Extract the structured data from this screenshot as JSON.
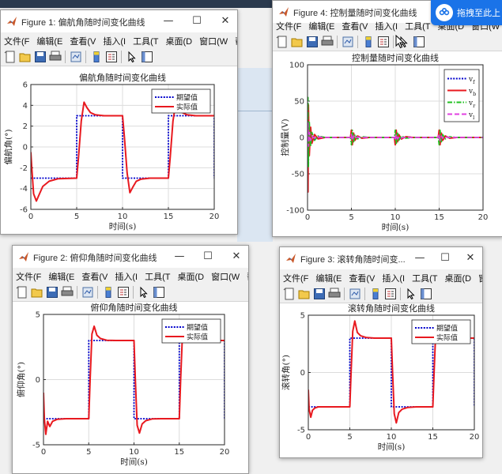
{
  "menu": [
    "文件(F",
    "编辑(E",
    "查看(V",
    "插入(I",
    "工具(T",
    "桌面(D",
    "窗口(W",
    "帮助(H"
  ],
  "win_buttons": {
    "minimize": "—",
    "maximize": "☐",
    "close": "✕"
  },
  "badge": {
    "label": "拖拽至此上"
  },
  "figures": [
    {
      "id": "fig1",
      "window_title": "Figure 1: 偏航角随时间变化曲线",
      "chart_data": {
        "type": "line",
        "title": "偏航角随时间变化曲线",
        "xlabel": "时间(s)",
        "ylabel": "偏航角(°)",
        "xlim": [
          0,
          20
        ],
        "ylim": [
          -6,
          6
        ],
        "xticks": [
          0,
          5,
          10,
          15,
          20
        ],
        "xtick_labels": [
          "0",
          "5",
          "10",
          "15",
          "20"
        ],
        "yticks": [
          -6,
          -4,
          -2,
          0,
          2,
          4,
          6
        ],
        "ytick_labels": [
          "-6",
          "-4",
          "-2",
          "0",
          "2",
          "4",
          "6"
        ],
        "grid": true,
        "legend_position": "top-right",
        "series": [
          {
            "name": "期望值",
            "color": "#0000cc",
            "style": "dotted",
            "x": [
              0,
              5,
              5,
              10,
              10,
              15,
              15,
              20,
              20
            ],
            "y": [
              -3,
              -3,
              3,
              3,
              -3,
              -3,
              3,
              3,
              -3
            ]
          },
          {
            "name": "实际值",
            "color": "#e8191f",
            "style": "solid",
            "x": [
              0,
              0.1,
              0.3,
              0.6,
              0.9,
              1.3,
              2.0,
              3.0,
              5.0,
              5.2,
              5.5,
              5.8,
              6.1,
              6.5,
              7.0,
              8.0,
              10.0,
              10.2,
              10.5,
              10.8,
              11.1,
              11.5,
              12.0,
              13.0,
              15.0,
              15.2,
              15.5,
              15.8,
              16.1,
              16.5,
              17.0,
              18.0,
              20.0
            ],
            "y": [
              -0.5,
              -2.0,
              -4.5,
              -5.2,
              -4.6,
              -3.8,
              -3.3,
              -3.05,
              -3.0,
              -1.0,
              2.5,
              4.3,
              3.8,
              3.3,
              3.1,
              3.0,
              3.0,
              1.0,
              -2.5,
              -4.4,
              -3.9,
              -3.3,
              -3.1,
              -3.0,
              -3.0,
              -1.0,
              2.5,
              4.2,
              3.7,
              3.3,
              3.1,
              3.0,
              3.0
            ]
          }
        ]
      }
    },
    {
      "id": "fig4",
      "window_title": "Figure 4: 控制量随时间变化曲线",
      "chart_data": {
        "type": "line",
        "title": "控制量随时间变化曲线",
        "xlabel": "时间(s)",
        "ylabel": "控制量(V)",
        "xlim": [
          0,
          20
        ],
        "ylim": [
          -100,
          100
        ],
        "xticks": [
          0,
          5,
          10,
          15,
          20
        ],
        "xtick_labels": [
          "0",
          "5",
          "10",
          "15",
          "20"
        ],
        "yticks": [
          -100,
          -50,
          0,
          50,
          100
        ],
        "ytick_labels": [
          "-100",
          "-50",
          "0",
          "50",
          "100"
        ],
        "grid": true,
        "legend_position": "top-right",
        "series": [
          {
            "name": "v",
            "sub": "f",
            "color": "#0000cc",
            "style": "dotted",
            "x": [
              0,
              0.05,
              0.1,
              0.2,
              0.35,
              0.5,
              0.8,
              1.2,
              2.0,
              4.9,
              5.0,
              5.1,
              5.25,
              5.4,
              5.7,
              6.2,
              7.0,
              9.9,
              10.0,
              10.1,
              10.25,
              10.4,
              10.7,
              11.2,
              12.0,
              14.9,
              15.0,
              15.1,
              15.25,
              15.4,
              15.7,
              16.2,
              17.0,
              20.0
            ],
            "y": [
              0,
              30,
              -20,
              12,
              -8,
              5,
              -3,
              1,
              0,
              0,
              8,
              -8,
              5,
              -3,
              2,
              -1,
              0,
              0,
              -8,
              8,
              -5,
              3,
              -2,
              1,
              0,
              0,
              8,
              -8,
              5,
              -3,
              2,
              -1,
              0,
              0
            ]
          },
          {
            "name": "v",
            "sub": "b",
            "color": "#e8191f",
            "style": "solid",
            "x": [
              0,
              0.05,
              0.1,
              0.2,
              0.35,
              0.5,
              0.8,
              1.2,
              2.0,
              4.9,
              5.0,
              5.1,
              5.25,
              5.4,
              5.7,
              6.2,
              7.0,
              9.9,
              10.0,
              10.1,
              10.25,
              10.4,
              10.7,
              11.2,
              12.0,
              14.9,
              15.0,
              15.1,
              15.25,
              15.4,
              15.7,
              16.2,
              17.0,
              20.0
            ],
            "y": [
              0,
              -75,
              45,
              -25,
              14,
              -8,
              4,
              -2,
              0,
              0,
              10,
              -10,
              6,
              -4,
              2,
              -1,
              0,
              0,
              -10,
              10,
              -6,
              4,
              -2,
              1,
              0,
              0,
              10,
              -10,
              6,
              -4,
              2,
              -1,
              0,
              0
            ]
          },
          {
            "name": "v",
            "sub": "r",
            "color": "#22c022",
            "style": "dashdot",
            "x": [
              0,
              0.05,
              0.1,
              0.2,
              0.35,
              0.5,
              0.8,
              1.2,
              2.0,
              4.9,
              5.0,
              5.1,
              5.25,
              5.4,
              5.7,
              6.2,
              7.0,
              9.9,
              10.0,
              10.1,
              10.25,
              10.4,
              10.7,
              11.2,
              12.0,
              14.9,
              15.0,
              15.1,
              15.25,
              15.4,
              15.7,
              16.2,
              17.0,
              20.0
            ],
            "y": [
              0,
              55,
              -40,
              22,
              -12,
              7,
              -4,
              2,
              0,
              0,
              -10,
              10,
              -6,
              4,
              -2,
              1,
              0,
              0,
              10,
              -10,
              6,
              -4,
              2,
              -1,
              0,
              0,
              -10,
              10,
              -6,
              4,
              -2,
              1,
              0,
              0
            ]
          },
          {
            "name": "v",
            "sub": "l",
            "color": "#e040e0",
            "style": "dashed",
            "x": [
              0,
              0.05,
              0.1,
              0.2,
              0.35,
              0.5,
              0.8,
              1.2,
              2.0,
              4.9,
              5.0,
              5.1,
              5.25,
              5.4,
              5.7,
              6.2,
              7.0,
              9.9,
              10.0,
              10.1,
              10.25,
              10.4,
              10.7,
              11.2,
              12.0,
              14.9,
              15.0,
              15.1,
              15.25,
              15.4,
              15.7,
              16.2,
              17.0,
              20.0
            ],
            "y": [
              0,
              20,
              -12,
              7,
              -4,
              2,
              -1,
              0.5,
              0,
              0,
              4,
              -4,
              2,
              -1,
              0.5,
              0,
              0,
              0,
              -4,
              4,
              -2,
              1,
              -0.5,
              0,
              0,
              0,
              4,
              -4,
              2,
              -1,
              0.5,
              0,
              0,
              0
            ]
          }
        ]
      }
    },
    {
      "id": "fig2",
      "window_title": "Figure 2: 俯仰角随时间变化曲线",
      "chart_data": {
        "type": "line",
        "title": "俯仰角随时间变化曲线",
        "xlabel": "时间(s)",
        "ylabel": "俯仰角(°)",
        "xlim": [
          0,
          20
        ],
        "ylim": [
          -5,
          5
        ],
        "xticks": [
          0,
          5,
          10,
          15,
          20
        ],
        "xtick_labels": [
          "0",
          "5",
          "10",
          "15",
          "20"
        ],
        "yticks": [
          -5,
          0,
          5
        ],
        "ytick_labels": [
          "-5",
          "0",
          "5"
        ],
        "grid": true,
        "legend_position": "top-right",
        "series": [
          {
            "name": "期望值",
            "color": "#0000cc",
            "style": "dotted",
            "x": [
              0,
              5,
              5,
              10,
              10,
              15,
              15,
              20,
              20
            ],
            "y": [
              -3,
              -3,
              3,
              3,
              -3,
              -3,
              3,
              3,
              -3
            ]
          },
          {
            "name": "实际值",
            "color": "#e8191f",
            "style": "solid",
            "x": [
              0,
              0.1,
              0.25,
              0.45,
              0.7,
              1.0,
              1.5,
              2.5,
              5.0,
              5.15,
              5.35,
              5.6,
              5.9,
              6.3,
              7.0,
              8.0,
              10.0,
              10.15,
              10.35,
              10.6,
              10.9,
              11.3,
              12.0,
              13.0,
              15.0,
              15.15,
              15.35,
              15.6,
              15.9,
              16.3,
              17.0,
              18.0,
              20.0
            ],
            "y": [
              -1.0,
              -3.0,
              -4.2,
              -3.2,
              -3.6,
              -3.2,
              -3.05,
              -3.0,
              -3.0,
              0.0,
              3.5,
              4.1,
              3.4,
              3.15,
              3.02,
              3.0,
              3.0,
              0.0,
              -3.5,
              -4.1,
              -3.4,
              -3.15,
              -3.02,
              -3.0,
              -3.0,
              0.0,
              3.5,
              4.1,
              3.4,
              3.15,
              3.02,
              3.0,
              3.0
            ]
          }
        ]
      }
    },
    {
      "id": "fig3",
      "window_title": "Figure 3: 滚转角随时间变...",
      "chart_data": {
        "type": "line",
        "title": "滚转角随时间变化曲线",
        "xlabel": "时间(s)",
        "ylabel": "滚转角(°)",
        "xlim": [
          0,
          20
        ],
        "ylim": [
          -5,
          5
        ],
        "xticks": [
          0,
          5,
          10,
          15,
          20
        ],
        "xtick_labels": [
          "0",
          "5",
          "10",
          "15",
          "20"
        ],
        "yticks": [
          -5,
          0,
          5
        ],
        "ytick_labels": [
          "-5",
          "0",
          "5"
        ],
        "grid": true,
        "legend_position": "top-right",
        "series": [
          {
            "name": "期望值",
            "color": "#0000cc",
            "style": "dotted",
            "x": [
              0,
              5,
              5,
              10,
              10,
              15,
              15,
              20,
              20
            ],
            "y": [
              -3,
              -3,
              3,
              3,
              -3,
              -3,
              3,
              3,
              -3
            ]
          },
          {
            "name": "实际值",
            "color": "#e8191f",
            "style": "solid",
            "x": [
              0,
              0.1,
              0.3,
              0.5,
              0.8,
              1.2,
              2.0,
              5.0,
              5.15,
              5.35,
              5.6,
              5.9,
              6.3,
              7.0,
              8.0,
              10.0,
              10.15,
              10.35,
              10.6,
              10.9,
              11.3,
              12.0,
              13.0,
              15.0,
              15.15,
              15.35,
              15.6,
              15.9,
              16.3,
              17.0,
              18.0,
              20.0
            ],
            "y": [
              -1.5,
              -3.2,
              -3.9,
              -3.3,
              -3.1,
              -3.0,
              -3.0,
              -3.0,
              0.0,
              3.6,
              4.5,
              3.5,
              3.2,
              3.05,
              3.0,
              3.0,
              0.0,
              -3.6,
              -4.4,
              -3.5,
              -3.2,
              -3.05,
              -3.0,
              -3.0,
              0.0,
              3.6,
              4.5,
              3.5,
              3.2,
              3.05,
              3.0,
              3.0
            ]
          }
        ]
      }
    }
  ]
}
